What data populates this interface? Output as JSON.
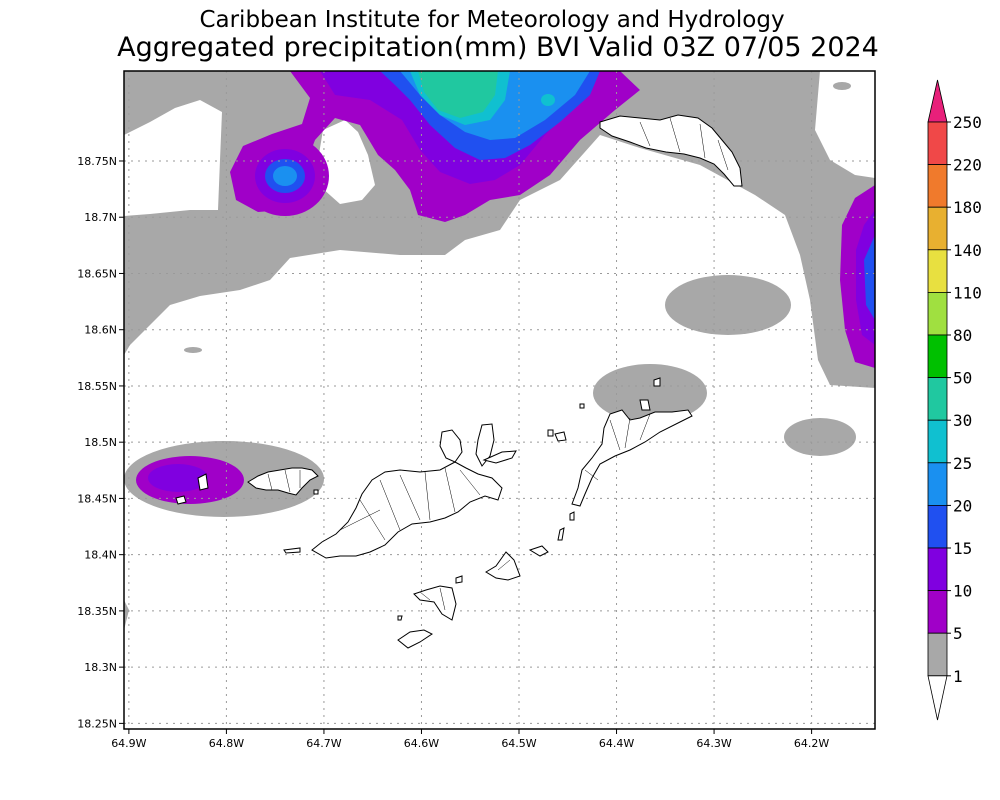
{
  "title": {
    "line1": "Caribbean Institute for Meteorology and Hydrology",
    "line2": "Aggregated precipitation(mm) BVI Valid 03Z 07/05 2024"
  },
  "map": {
    "lat_ticks": [
      "18.75N",
      "18.7N",
      "18.65N",
      "18.6N",
      "18.55N",
      "18.5N",
      "18.45N",
      "18.4N",
      "18.35N",
      "18.3N",
      "18.25N"
    ],
    "lon_ticks": [
      "64.9W",
      "64.8W",
      "64.7W",
      "64.6W",
      "64.5W",
      "64.4W",
      "64.3W",
      "64.2W"
    ],
    "lat_range": [
      18.245,
      18.83
    ],
    "lon_range": [
      -64.905,
      -64.135
    ]
  },
  "colorbar": {
    "labels": [
      "250",
      "220",
      "180",
      "140",
      "110",
      "80",
      "50",
      "30",
      "25",
      "20",
      "15",
      "10",
      "5",
      "1"
    ],
    "colors": {
      "c250": "#e8207a",
      "c220": "#f04848",
      "c180": "#f07a2c",
      "c140": "#e8b030",
      "c110": "#e8e040",
      "c80": "#a0e040",
      "c50": "#00c000",
      "c30": "#20c8a0",
      "c25": "#10c0d0",
      "c20": "#1a90f0",
      "c15": "#2050f0",
      "c10": "#8000e0",
      "c5": "#a000c8",
      "c1": "#a8a8a8",
      "below": "#ffffff"
    }
  }
}
